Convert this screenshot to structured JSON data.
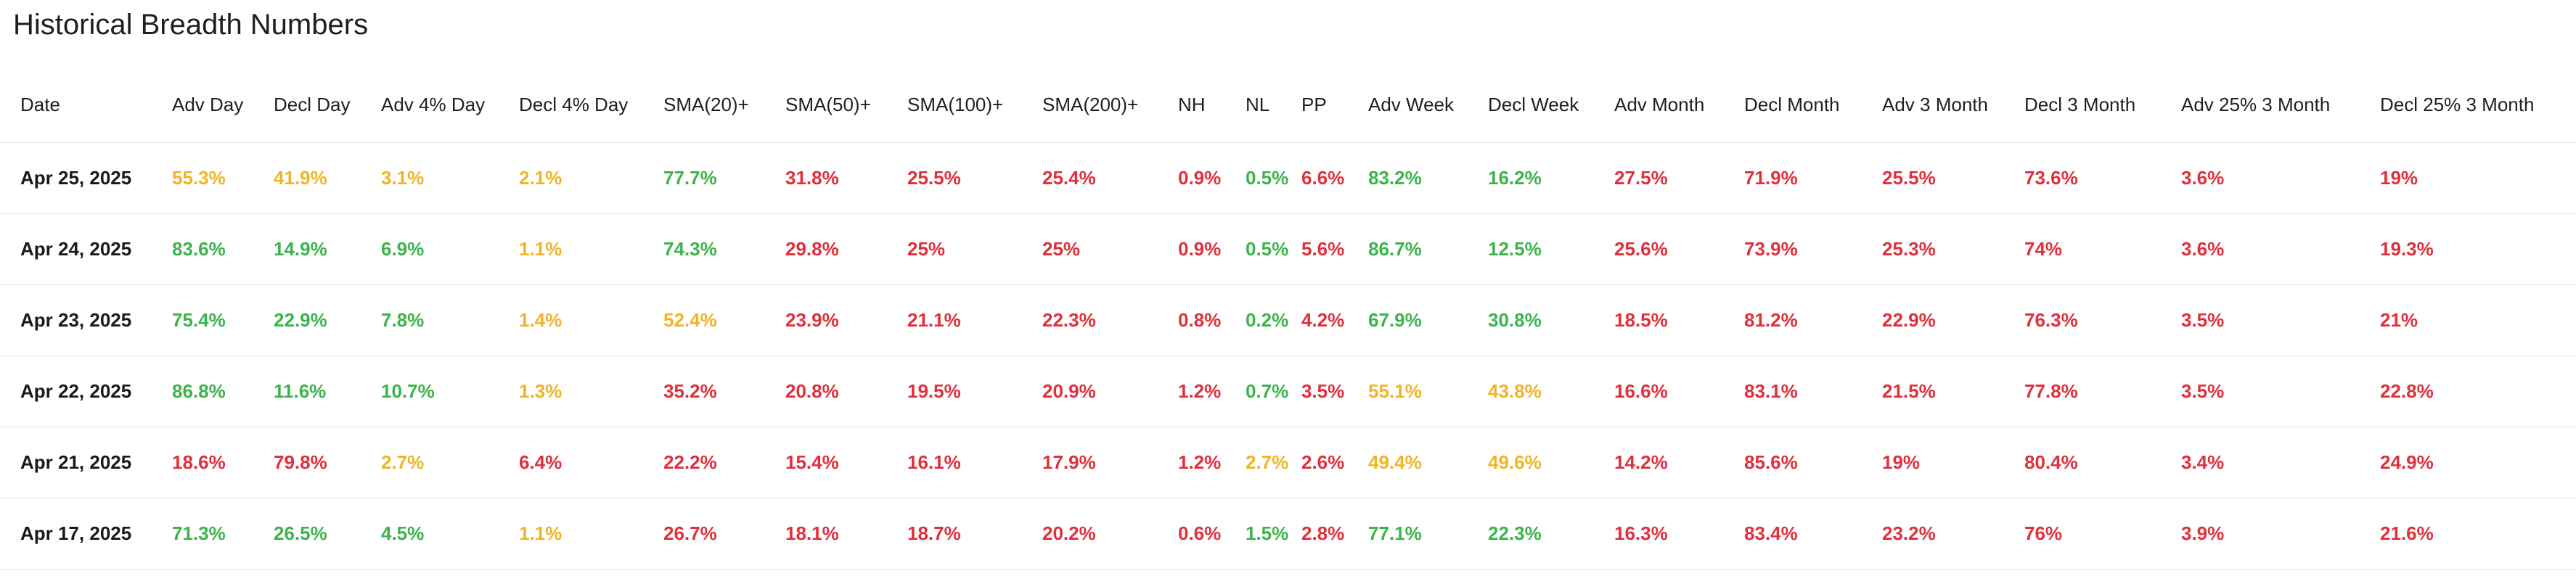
{
  "title": "Historical Breadth Numbers",
  "colors": {
    "green": "#3cb44b",
    "red": "#e0303c",
    "yellow": "#efb526"
  },
  "columns": [
    "Date",
    "Adv Day",
    "Decl Day",
    "Adv 4% Day",
    "Decl 4% Day",
    "SMA(20)+",
    "SMA(50)+",
    "SMA(100)+",
    "SMA(200)+",
    "NH",
    "NL",
    "PP",
    "Adv Week",
    "Decl Week",
    "Adv Month",
    "Decl Month",
    "Adv 3 Month",
    "Decl 3 Month",
    "Adv 25% 3 Month",
    "Decl 25% 3 Month"
  ],
  "rows": [
    {
      "date": "Apr 25, 2025",
      "cells": [
        {
          "v": "55.3%",
          "c": "yellow"
        },
        {
          "v": "41.9%",
          "c": "yellow"
        },
        {
          "v": "3.1%",
          "c": "yellow"
        },
        {
          "v": "2.1%",
          "c": "yellow"
        },
        {
          "v": "77.7%",
          "c": "green"
        },
        {
          "v": "31.8%",
          "c": "red"
        },
        {
          "v": "25.5%",
          "c": "red"
        },
        {
          "v": "25.4%",
          "c": "red"
        },
        {
          "v": "0.9%",
          "c": "red"
        },
        {
          "v": "0.5%",
          "c": "green"
        },
        {
          "v": "6.6%",
          "c": "red"
        },
        {
          "v": "83.2%",
          "c": "green"
        },
        {
          "v": "16.2%",
          "c": "green"
        },
        {
          "v": "27.5%",
          "c": "red"
        },
        {
          "v": "71.9%",
          "c": "red"
        },
        {
          "v": "25.5%",
          "c": "red"
        },
        {
          "v": "73.6%",
          "c": "red"
        },
        {
          "v": "3.6%",
          "c": "red"
        },
        {
          "v": "19%",
          "c": "red"
        }
      ]
    },
    {
      "date": "Apr 24, 2025",
      "cells": [
        {
          "v": "83.6%",
          "c": "green"
        },
        {
          "v": "14.9%",
          "c": "green"
        },
        {
          "v": "6.9%",
          "c": "green"
        },
        {
          "v": "1.1%",
          "c": "yellow"
        },
        {
          "v": "74.3%",
          "c": "green"
        },
        {
          "v": "29.8%",
          "c": "red"
        },
        {
          "v": "25%",
          "c": "red"
        },
        {
          "v": "25%",
          "c": "red"
        },
        {
          "v": "0.9%",
          "c": "red"
        },
        {
          "v": "0.5%",
          "c": "green"
        },
        {
          "v": "5.6%",
          "c": "red"
        },
        {
          "v": "86.7%",
          "c": "green"
        },
        {
          "v": "12.5%",
          "c": "green"
        },
        {
          "v": "25.6%",
          "c": "red"
        },
        {
          "v": "73.9%",
          "c": "red"
        },
        {
          "v": "25.3%",
          "c": "red"
        },
        {
          "v": "74%",
          "c": "red"
        },
        {
          "v": "3.6%",
          "c": "red"
        },
        {
          "v": "19.3%",
          "c": "red"
        }
      ]
    },
    {
      "date": "Apr 23, 2025",
      "cells": [
        {
          "v": "75.4%",
          "c": "green"
        },
        {
          "v": "22.9%",
          "c": "green"
        },
        {
          "v": "7.8%",
          "c": "green"
        },
        {
          "v": "1.4%",
          "c": "yellow"
        },
        {
          "v": "52.4%",
          "c": "yellow"
        },
        {
          "v": "23.9%",
          "c": "red"
        },
        {
          "v": "21.1%",
          "c": "red"
        },
        {
          "v": "22.3%",
          "c": "red"
        },
        {
          "v": "0.8%",
          "c": "red"
        },
        {
          "v": "0.2%",
          "c": "green"
        },
        {
          "v": "4.2%",
          "c": "red"
        },
        {
          "v": "67.9%",
          "c": "green"
        },
        {
          "v": "30.8%",
          "c": "green"
        },
        {
          "v": "18.5%",
          "c": "red"
        },
        {
          "v": "81.2%",
          "c": "red"
        },
        {
          "v": "22.9%",
          "c": "red"
        },
        {
          "v": "76.3%",
          "c": "red"
        },
        {
          "v": "3.5%",
          "c": "red"
        },
        {
          "v": "21%",
          "c": "red"
        }
      ]
    },
    {
      "date": "Apr 22, 2025",
      "cells": [
        {
          "v": "86.8%",
          "c": "green"
        },
        {
          "v": "11.6%",
          "c": "green"
        },
        {
          "v": "10.7%",
          "c": "green"
        },
        {
          "v": "1.3%",
          "c": "yellow"
        },
        {
          "v": "35.2%",
          "c": "red"
        },
        {
          "v": "20.8%",
          "c": "red"
        },
        {
          "v": "19.5%",
          "c": "red"
        },
        {
          "v": "20.9%",
          "c": "red"
        },
        {
          "v": "1.2%",
          "c": "red"
        },
        {
          "v": "0.7%",
          "c": "green"
        },
        {
          "v": "3.5%",
          "c": "red"
        },
        {
          "v": "55.1%",
          "c": "yellow"
        },
        {
          "v": "43.8%",
          "c": "yellow"
        },
        {
          "v": "16.6%",
          "c": "red"
        },
        {
          "v": "83.1%",
          "c": "red"
        },
        {
          "v": "21.5%",
          "c": "red"
        },
        {
          "v": "77.8%",
          "c": "red"
        },
        {
          "v": "3.5%",
          "c": "red"
        },
        {
          "v": "22.8%",
          "c": "red"
        }
      ]
    },
    {
      "date": "Apr 21, 2025",
      "cells": [
        {
          "v": "18.6%",
          "c": "red"
        },
        {
          "v": "79.8%",
          "c": "red"
        },
        {
          "v": "2.7%",
          "c": "yellow"
        },
        {
          "v": "6.4%",
          "c": "red"
        },
        {
          "v": "22.2%",
          "c": "red"
        },
        {
          "v": "15.4%",
          "c": "red"
        },
        {
          "v": "16.1%",
          "c": "red"
        },
        {
          "v": "17.9%",
          "c": "red"
        },
        {
          "v": "1.2%",
          "c": "red"
        },
        {
          "v": "2.7%",
          "c": "yellow"
        },
        {
          "v": "2.6%",
          "c": "red"
        },
        {
          "v": "49.4%",
          "c": "yellow"
        },
        {
          "v": "49.6%",
          "c": "yellow"
        },
        {
          "v": "14.2%",
          "c": "red"
        },
        {
          "v": "85.6%",
          "c": "red"
        },
        {
          "v": "19%",
          "c": "red"
        },
        {
          "v": "80.4%",
          "c": "red"
        },
        {
          "v": "3.4%",
          "c": "red"
        },
        {
          "v": "24.9%",
          "c": "red"
        }
      ]
    },
    {
      "date": "Apr 17, 2025",
      "cells": [
        {
          "v": "71.3%",
          "c": "green"
        },
        {
          "v": "26.5%",
          "c": "green"
        },
        {
          "v": "4.5%",
          "c": "green"
        },
        {
          "v": "1.1%",
          "c": "yellow"
        },
        {
          "v": "26.7%",
          "c": "red"
        },
        {
          "v": "18.1%",
          "c": "red"
        },
        {
          "v": "18.7%",
          "c": "red"
        },
        {
          "v": "20.2%",
          "c": "red"
        },
        {
          "v": "0.6%",
          "c": "red"
        },
        {
          "v": "1.5%",
          "c": "green"
        },
        {
          "v": "2.8%",
          "c": "red"
        },
        {
          "v": "77.1%",
          "c": "green"
        },
        {
          "v": "22.3%",
          "c": "green"
        },
        {
          "v": "16.3%",
          "c": "red"
        },
        {
          "v": "83.4%",
          "c": "red"
        },
        {
          "v": "23.2%",
          "c": "red"
        },
        {
          "v": "76%",
          "c": "red"
        },
        {
          "v": "3.9%",
          "c": "red"
        },
        {
          "v": "21.6%",
          "c": "red"
        }
      ]
    }
  ]
}
